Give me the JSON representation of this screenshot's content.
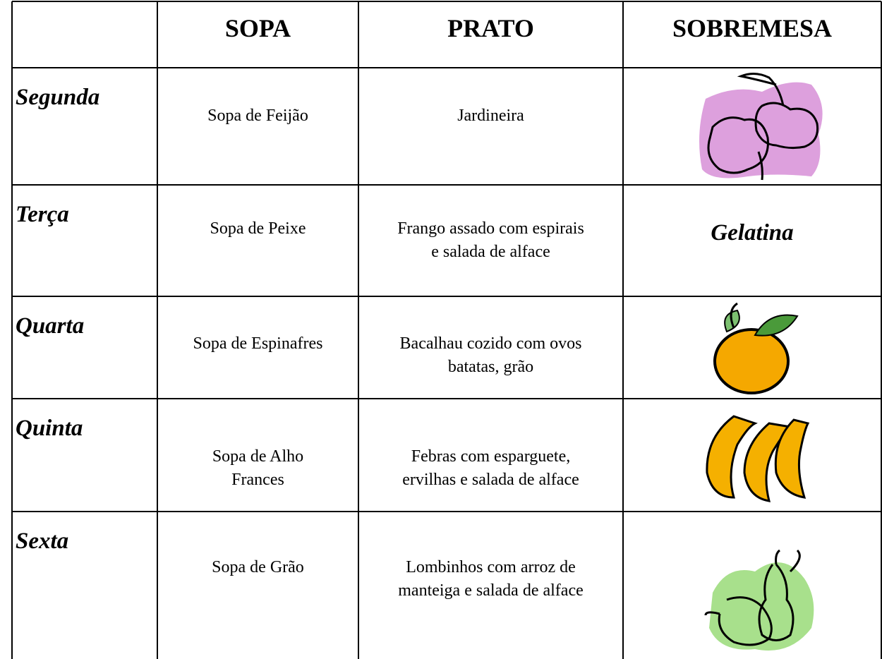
{
  "table": {
    "header": [
      "SOPA",
      "PRATO",
      "SOBREMESA"
    ],
    "rows": [
      {
        "day": "Segunda",
        "sopa": [
          "Sopa de Feijão"
        ],
        "prato": [
          "Jardineira"
        ]
      },
      {
        "day": "Terça",
        "sopa": [
          "Sopa de Peixe"
        ],
        "prato": [
          "Frango assado com espirais",
          "e salada de alface"
        ],
        "sobremesa": "Gelatina"
      },
      {
        "day": "Quarta",
        "sopa": [
          "Sopa de Espinafres"
        ],
        "prato": [
          "Bacalhau cozido com ovos",
          "batatas, grão"
        ]
      },
      {
        "day": "Quinta",
        "sopa": [
          "Sopa de Alho",
          "Frances"
        ],
        "prato": [
          "Febras com esparguete,",
          "ervilhas e salada de alface"
        ]
      },
      {
        "day": "Sexta",
        "sopa": [
          "Sopa de Grão"
        ],
        "prato": [
          "Lombinhos com arroz de",
          "manteiga e salada de alface"
        ]
      }
    ]
  }
}
